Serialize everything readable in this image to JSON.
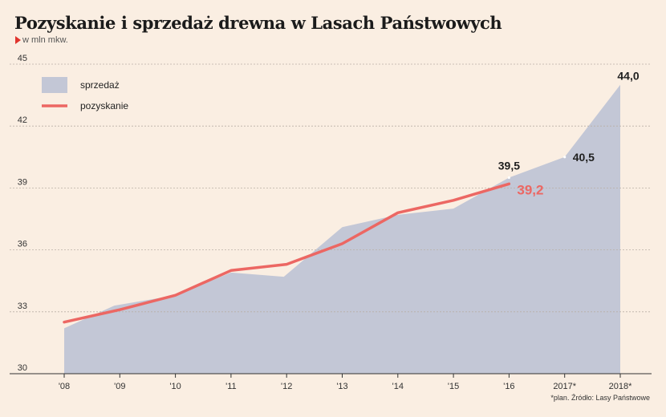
{
  "title": "Pozyskanie i sprzedaż drewna w Lasach Państwowych",
  "subtitle": "w mln mkw.",
  "source_note": "*plan. Źródło: Lasy Państwowe",
  "colors": {
    "sprzedaz": "#c3c7d6",
    "pozyskanie": "#ec6763",
    "grid": "#b9b0a6",
    "text": "#222222"
  },
  "chart_data": {
    "type": "area",
    "categories": [
      "'08",
      "'09",
      "'10",
      "'11",
      "'12",
      "'13",
      "'14",
      "'15",
      "'16",
      "2017*",
      "2018*"
    ],
    "ylim": [
      30,
      45
    ],
    "yticks": [
      30,
      33,
      36,
      39,
      42,
      45
    ],
    "xlabel": "",
    "ylabel": "",
    "grid": true,
    "legend_position": "top-left",
    "series": [
      {
        "name": "sprzedaż",
        "kind": "area",
        "x": [
          2008,
          2008.9,
          2010,
          2011,
          2011.95,
          2013,
          2014,
          2015,
          2016,
          2017,
          2018
        ],
        "values": [
          32.2,
          33.3,
          33.8,
          34.9,
          34.7,
          37.1,
          37.7,
          38.0,
          39.5,
          40.5,
          44.0
        ]
      },
      {
        "name": "pozyskanie",
        "kind": "line",
        "x": [
          2008,
          2009,
          2010,
          2011,
          2012,
          2013,
          2014,
          2015,
          2016
        ],
        "values": [
          32.5,
          33.1,
          33.8,
          35.0,
          35.3,
          36.3,
          37.8,
          38.4,
          39.2
        ]
      }
    ],
    "annotations": [
      {
        "text": "39,5",
        "x": 2016,
        "y": 39.5,
        "series": "sprzedaż"
      },
      {
        "text": "40,5",
        "x": 2017,
        "y": 40.5,
        "series": "sprzedaż"
      },
      {
        "text": "44,0",
        "x": 2018,
        "y": 44.0,
        "series": "sprzedaż"
      },
      {
        "text": "39,2",
        "x": 2016,
        "y": 39.2,
        "series": "pozyskanie"
      }
    ]
  }
}
